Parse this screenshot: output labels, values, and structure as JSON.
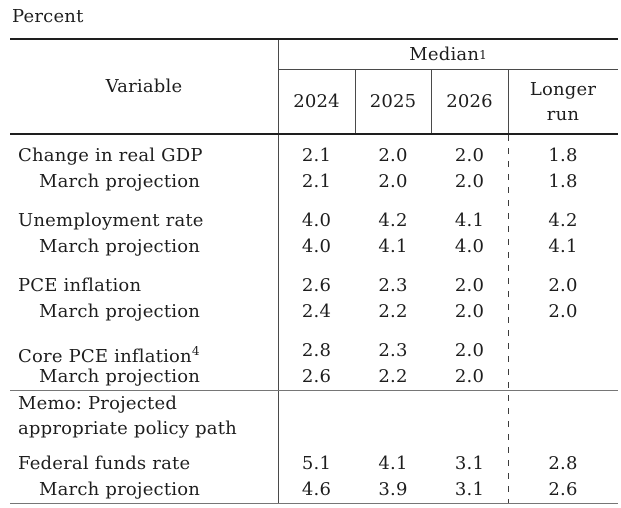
{
  "unit_label": "Percent",
  "colors": {
    "text": "#1d1d1d",
    "rule_dark": "#1e1e1e",
    "rule_light": "#767676"
  },
  "table": {
    "header": {
      "variable": "Variable",
      "median": "Median",
      "median_sup": "1",
      "years": [
        "2024",
        "2025",
        "2026"
      ],
      "longer_run_line1": "Longer",
      "longer_run_line2": "run"
    },
    "rows": [
      {
        "label": "Change in real GDP",
        "values": [
          "2.1",
          "2.0",
          "2.0",
          "1.8"
        ]
      },
      {
        "label": "March projection",
        "values": [
          "2.1",
          "2.0",
          "2.0",
          "1.8"
        ]
      },
      {
        "label": "Unemployment rate",
        "values": [
          "4.0",
          "4.2",
          "4.1",
          "4.2"
        ]
      },
      {
        "label": "March projection",
        "values": [
          "4.0",
          "4.1",
          "4.0",
          "4.1"
        ]
      },
      {
        "label": "PCE inflation",
        "values": [
          "2.6",
          "2.3",
          "2.0",
          "2.0"
        ]
      },
      {
        "label": "March projection",
        "values": [
          "2.4",
          "2.2",
          "2.0",
          "2.0"
        ]
      },
      {
        "label": "Core PCE inflation",
        "sup": "4",
        "values": [
          "2.8",
          "2.3",
          "2.0",
          ""
        ]
      },
      {
        "label": "March projection",
        "values": [
          "2.6",
          "2.2",
          "2.0",
          ""
        ]
      }
    ],
    "memo": {
      "line1": "Memo: Projected",
      "line2": "appropriate policy path"
    },
    "memo_rows": [
      {
        "label": "Federal funds rate",
        "values": [
          "5.1",
          "4.1",
          "3.1",
          "2.8"
        ]
      },
      {
        "label": "March projection",
        "values": [
          "4.6",
          "3.9",
          "3.1",
          "2.6"
        ]
      }
    ]
  }
}
